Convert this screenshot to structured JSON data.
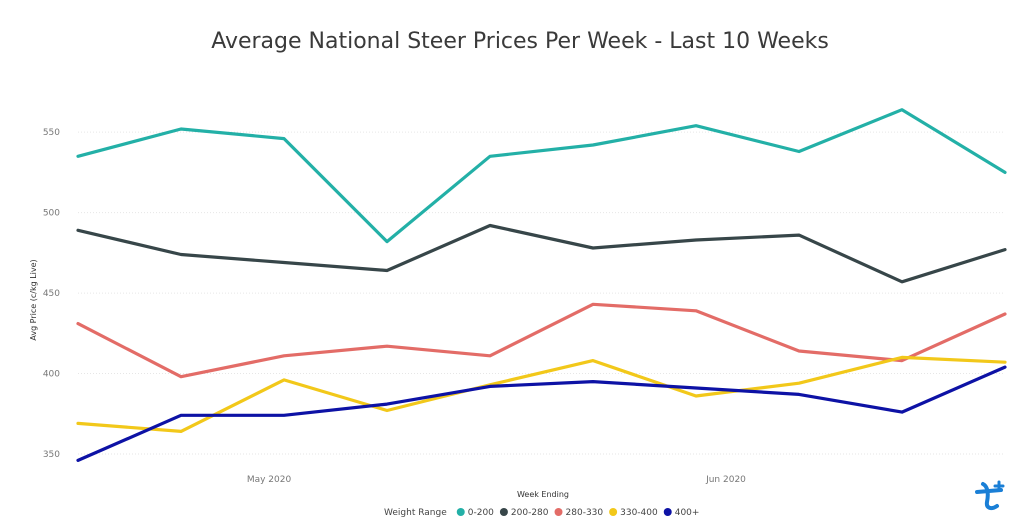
{
  "chart_data": {
    "type": "line",
    "title": "Average National Steer Prices Per Week - Last 10 Weeks",
    "xlabel": "Week Ending",
    "ylabel": "Avg Price (c/kg Live)",
    "x_tick_labels": [
      "May 2020",
      "Jun 2020"
    ],
    "y_ticks": [
      350,
      400,
      450,
      500,
      550
    ],
    "ylim": [
      345,
      570
    ],
    "grid": true,
    "legend": {
      "title": "Weight Range",
      "placement": "bottom-center"
    },
    "series": [
      {
        "name": "0-200",
        "color": "#23b0a7",
        "values": [
          535,
          552,
          546,
          482,
          535,
          542,
          554,
          538,
          564,
          525
        ]
      },
      {
        "name": "200-280",
        "color": "#374649",
        "values": [
          489,
          474,
          469,
          464,
          492,
          478,
          483,
          486,
          457,
          477
        ]
      },
      {
        "name": "280-330",
        "color": "#e36c67",
        "values": [
          431,
          398,
          411,
          417,
          411,
          443,
          439,
          414,
          408,
          437
        ]
      },
      {
        "name": "330-400",
        "color": "#f2c81a",
        "values": [
          369,
          364,
          396,
          377,
          393,
          408,
          386,
          394,
          410,
          407
        ]
      },
      {
        "name": "400+",
        "color": "#0d12a5",
        "values": [
          346,
          374,
          374,
          381,
          392,
          395,
          391,
          387,
          376,
          404
        ]
      }
    ]
  },
  "logo": {
    "name": "tick-logo-icon",
    "color": "#1a7fd6"
  }
}
